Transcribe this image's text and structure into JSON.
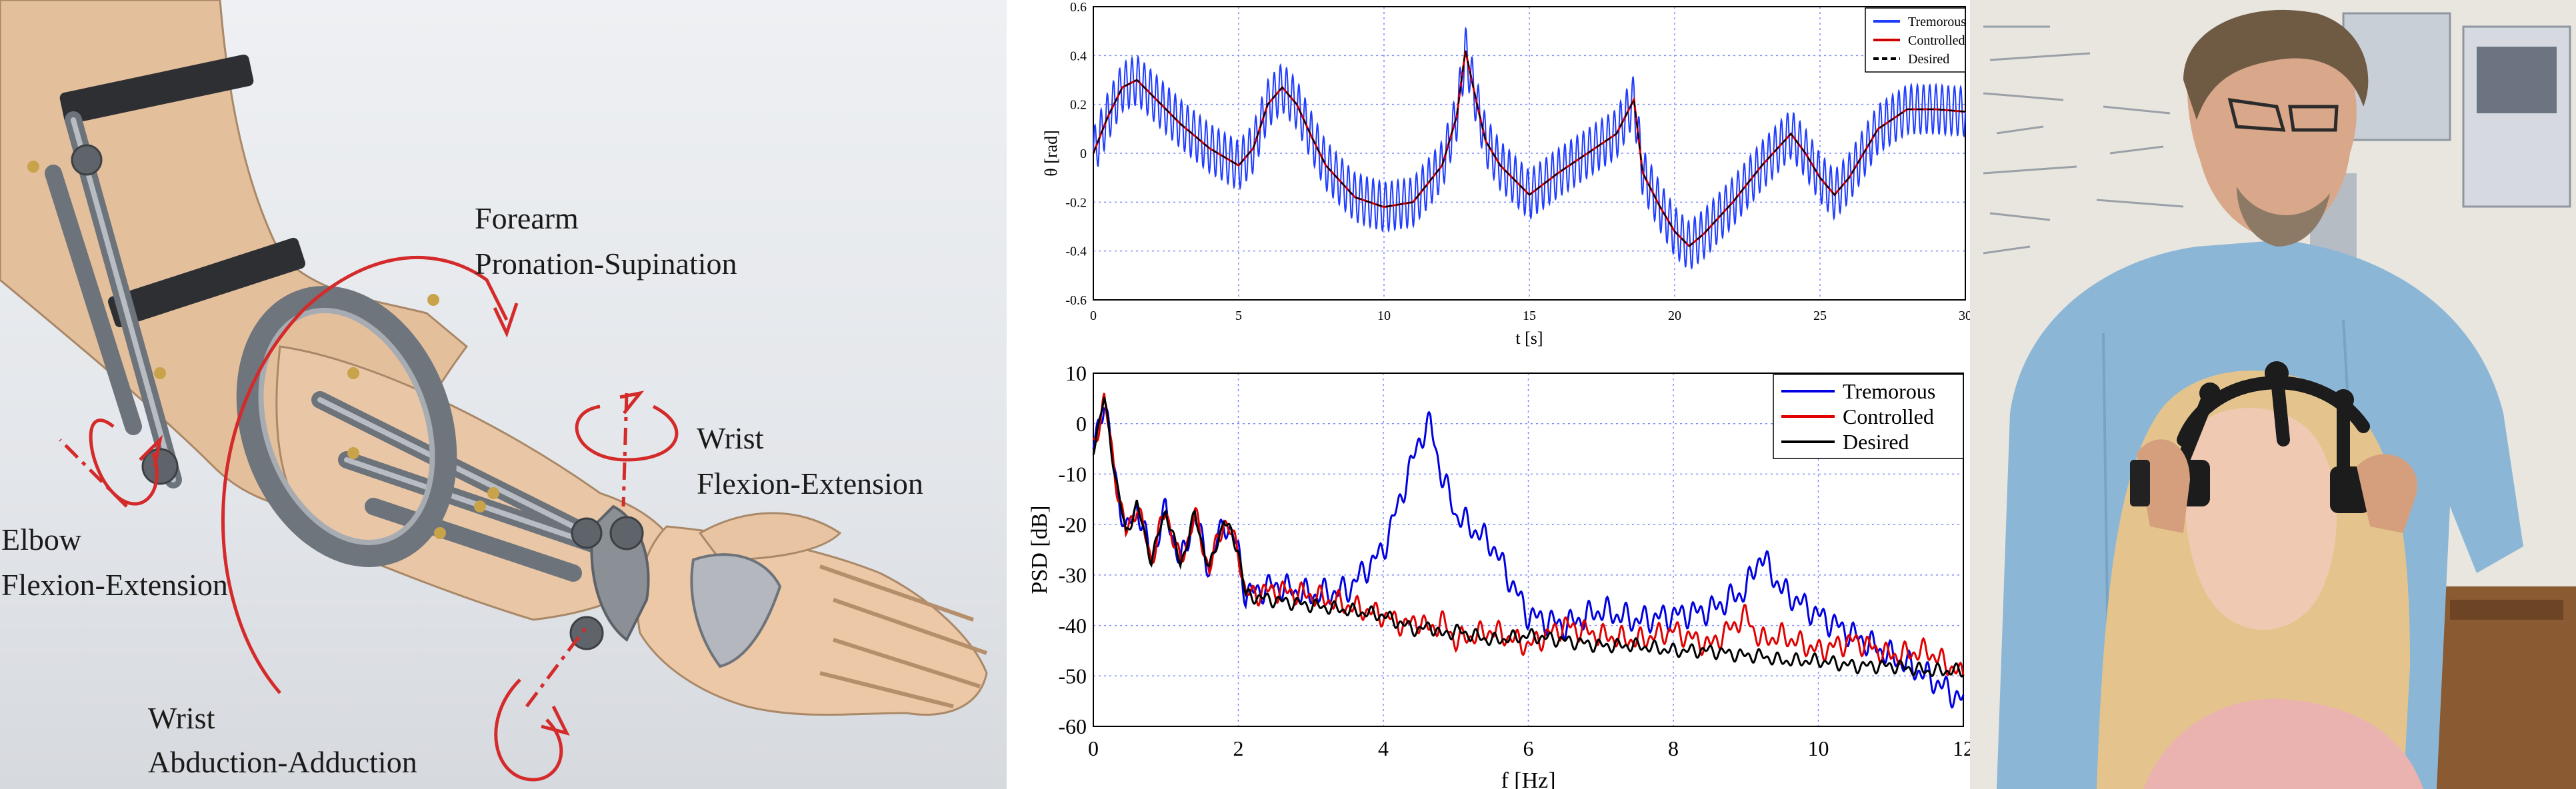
{
  "exoskeleton": {
    "labels": {
      "forearm_line1": "Forearm",
      "forearm_line2": "Pronation-Supination",
      "wrist_fe_line1": "Wrist",
      "wrist_fe_line2": "Flexion-Extension",
      "elbow_line1": "Elbow",
      "elbow_line2": "Flexion-Extension",
      "wrist_aa_line1": "Wrist",
      "wrist_aa_line2": "Abduction-Adduction"
    },
    "colors": {
      "arrow": "#d42a2a",
      "skin": "#e6c4a4",
      "metal": "#8a8f96"
    }
  },
  "chart_data": [
    {
      "type": "line",
      "xlabel": "t [s]",
      "ylabel": "θ [rad]",
      "xlim": [
        0,
        30
      ],
      "ylim": [
        -0.6,
        0.6
      ],
      "xticks": [
        "0",
        "5",
        "10",
        "15",
        "20",
        "25",
        "30"
      ],
      "yticks": [
        "0.6",
        "0.4",
        "0.2",
        "0",
        "-0.2",
        "-0.4",
        "-0.6"
      ],
      "grid": true,
      "legend_position": "top-right",
      "x": [
        0,
        0.5,
        1,
        1.5,
        2,
        3,
        4,
        5,
        5.5,
        6,
        6.5,
        7,
        7.5,
        8,
        9,
        10,
        11,
        12,
        12.5,
        12.8,
        13.2,
        13.5,
        14,
        15,
        16,
        17,
        18,
        18.6,
        18.9,
        19.5,
        20,
        20.5,
        21,
        22,
        23,
        24,
        24.5,
        25,
        25.5,
        26,
        27,
        28,
        29,
        30
      ],
      "series": [
        {
          "name": "Tremorous",
          "color": "#1f3cff",
          "style": "solid",
          "tremor_amplitude": 0.1,
          "values": [
            0,
            0.15,
            0.27,
            0.3,
            0.24,
            0.12,
            0.02,
            -0.05,
            0.02,
            0.2,
            0.27,
            0.2,
            0.07,
            -0.05,
            -0.18,
            -0.22,
            -0.2,
            -0.05,
            0.15,
            0.42,
            0.2,
            0.05,
            -0.05,
            -0.17,
            -0.08,
            0.0,
            0.08,
            0.22,
            -0.08,
            -0.22,
            -0.32,
            -0.38,
            -0.33,
            -0.2,
            -0.05,
            0.08,
            0.0,
            -0.1,
            -0.17,
            -0.1,
            0.1,
            0.18,
            0.18,
            0.17
          ]
        },
        {
          "name": "Controlled",
          "color": "#d10000",
          "style": "solid",
          "values": [
            0,
            0.15,
            0.27,
            0.3,
            0.24,
            0.12,
            0.02,
            -0.05,
            0.02,
            0.2,
            0.27,
            0.2,
            0.07,
            -0.05,
            -0.18,
            -0.22,
            -0.2,
            -0.05,
            0.15,
            0.42,
            0.2,
            0.05,
            -0.05,
            -0.17,
            -0.08,
            0.0,
            0.08,
            0.22,
            -0.08,
            -0.22,
            -0.32,
            -0.38,
            -0.33,
            -0.2,
            -0.05,
            0.08,
            0.0,
            -0.1,
            -0.17,
            -0.1,
            0.1,
            0.18,
            0.18,
            0.17
          ]
        },
        {
          "name": "Desired",
          "color": "#000000",
          "style": "dashed",
          "values": [
            0,
            0.15,
            0.27,
            0.3,
            0.24,
            0.12,
            0.02,
            -0.05,
            0.02,
            0.2,
            0.27,
            0.2,
            0.07,
            -0.05,
            -0.18,
            -0.22,
            -0.2,
            -0.05,
            0.15,
            0.42,
            0.2,
            0.05,
            -0.05,
            -0.17,
            -0.08,
            0.0,
            0.08,
            0.22,
            -0.08,
            -0.22,
            -0.32,
            -0.38,
            -0.33,
            -0.2,
            -0.05,
            0.08,
            0.0,
            -0.1,
            -0.17,
            -0.1,
            0.1,
            0.18,
            0.18,
            0.17
          ]
        }
      ]
    },
    {
      "type": "line",
      "xlabel": "f [Hz]",
      "ylabel": "PSD [dB]",
      "xlim": [
        0,
        12
      ],
      "ylim": [
        -60,
        10
      ],
      "xticks": [
        "0",
        "2",
        "4",
        "6",
        "8",
        "10",
        "12"
      ],
      "yticks": [
        "10",
        "0",
        "-10",
        "-20",
        "-30",
        "-40",
        "-50",
        "-60"
      ],
      "grid": true,
      "legend_position": "top-right",
      "x": [
        0,
        0.15,
        0.3,
        0.45,
        0.6,
        0.8,
        1.0,
        1.2,
        1.4,
        1.6,
        1.8,
        2.0,
        2.1,
        2.5,
        3.0,
        3.5,
        4.0,
        4.3,
        4.5,
        4.65,
        4.8,
        5.0,
        5.5,
        6.0,
        6.5,
        7.0,
        7.5,
        8.0,
        8.5,
        9.0,
        9.2,
        9.5,
        10.0,
        10.5,
        11.0,
        11.5,
        12.0
      ],
      "series": [
        {
          "name": "Tremorous",
          "color": "#0000e0",
          "values": [
            -5,
            5,
            -10,
            -22,
            -16,
            -27,
            -17,
            -28,
            -18,
            -29,
            -19,
            -25,
            -34,
            -32,
            -34,
            -33,
            -25,
            -12,
            -3,
            0,
            -10,
            -18,
            -24,
            -38,
            -40,
            -37,
            -39,
            -38,
            -37,
            -33,
            -26,
            -33,
            -38,
            -42,
            -46,
            -50,
            -55
          ]
        },
        {
          "name": "Controlled",
          "color": "#e00000",
          "values": [
            -5,
            5,
            -10,
            -22,
            -16,
            -27,
            -17,
            -28,
            -18,
            -29,
            -19,
            -25,
            -34,
            -33,
            -34,
            -36,
            -38,
            -40,
            -39,
            -41,
            -39,
            -43,
            -41,
            -44,
            -40,
            -42,
            -43,
            -41,
            -44,
            -38,
            -43,
            -42,
            -45,
            -43,
            -46,
            -45,
            -50
          ]
        },
        {
          "name": "Desired",
          "color": "#000000",
          "values": [
            -5,
            5,
            -10,
            -22,
            -16,
            -27,
            -17,
            -28,
            -18,
            -29,
            -19,
            -25,
            -34,
            -35,
            -36,
            -37,
            -38,
            -40,
            -41,
            -40,
            -42,
            -41,
            -43,
            -42,
            -43,
            -44,
            -44,
            -45,
            -45,
            -46,
            -46,
            -47,
            -47,
            -48,
            -48,
            -49,
            -49
          ]
        }
      ]
    }
  ]
}
